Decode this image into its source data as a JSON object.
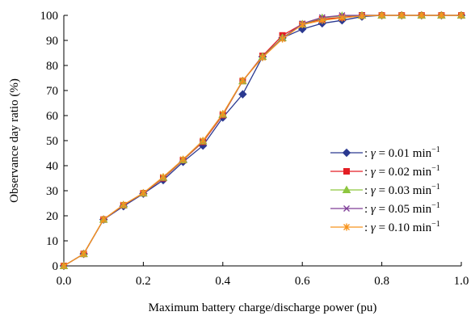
{
  "chart_data": {
    "type": "line",
    "xlabel": "Maximum battery charge/discharge power  (pu)",
    "ylabel": "Observance day ratio  (%)",
    "xlim": [
      0,
      1.0
    ],
    "ylim": [
      0,
      100
    ],
    "xticks": [
      "0.0",
      "0.2",
      "0.4",
      "0.6",
      "0.8",
      "1.0"
    ],
    "yticks": [
      "0",
      "10",
      "20",
      "30",
      "40",
      "50",
      "60",
      "70",
      "80",
      "90",
      "100"
    ],
    "grid": false,
    "legend_position": "bottom-right",
    "x": [
      0.0,
      0.05,
      0.1,
      0.15,
      0.2,
      0.25,
      0.3,
      0.35,
      0.4,
      0.45,
      0.5,
      0.55,
      0.6,
      0.65,
      0.7,
      0.75,
      0.8,
      0.85,
      0.9,
      0.95,
      1.0
    ],
    "series": [
      {
        "legend_prefix": ": ",
        "legend_symbol": "γ",
        "legend_value": " = 0.01 min",
        "legend_sup": "−1",
        "color": "#2b3990",
        "marker": "diamond",
        "values": [
          0,
          4.8,
          18.5,
          23.8,
          28.8,
          34.2,
          41.5,
          48,
          59.2,
          68.5,
          83.5,
          91,
          94.5,
          96.8,
          98,
          99.5,
          100,
          100,
          100,
          100,
          100
        ]
      },
      {
        "legend_prefix": ": ",
        "legend_symbol": "γ",
        "legend_value": " = 0.02 min",
        "legend_sup": "−1",
        "color": "#e31e24",
        "marker": "square",
        "values": [
          0,
          4.8,
          18.5,
          24.2,
          29,
          35,
          42.2,
          49.5,
          60.2,
          73.8,
          83.8,
          92,
          96.5,
          98.5,
          99.2,
          100,
          100,
          100,
          100,
          100,
          100
        ]
      },
      {
        "legend_prefix": ": ",
        "legend_symbol": "γ",
        "legend_value": " = 0.03 min",
        "legend_sup": "−1",
        "color": "#8dc63f",
        "marker": "triangle",
        "values": [
          0,
          4.8,
          18.5,
          24.3,
          29,
          35.3,
          42.3,
          49.8,
          60.5,
          73.8,
          83.5,
          91,
          96.5,
          99,
          99.8,
          100,
          100,
          100,
          100,
          100,
          100
        ]
      },
      {
        "legend_prefix": ": ",
        "legend_symbol": "γ",
        "legend_value": " = 0.05 min",
        "legend_sup": "−1",
        "color": "#7f3f98",
        "marker": "x",
        "values": [
          0,
          4.8,
          18.5,
          24.3,
          29,
          35.4,
          42.4,
          49.9,
          60.6,
          73.9,
          83.3,
          90.8,
          96.7,
          99.2,
          100,
          100,
          100,
          100,
          100,
          100,
          100
        ]
      },
      {
        "legend_prefix": ": ",
        "legend_symbol": "γ",
        "legend_value": " = 0.10 min",
        "legend_sup": "−1",
        "color": "#f7941d",
        "marker": "star",
        "values": [
          0,
          4.8,
          18.6,
          24.4,
          29.1,
          35.5,
          42.5,
          50,
          60.7,
          74,
          83.2,
          90.6,
          96.3,
          98,
          99,
          99.8,
          100,
          100,
          100,
          100,
          100
        ]
      }
    ]
  }
}
